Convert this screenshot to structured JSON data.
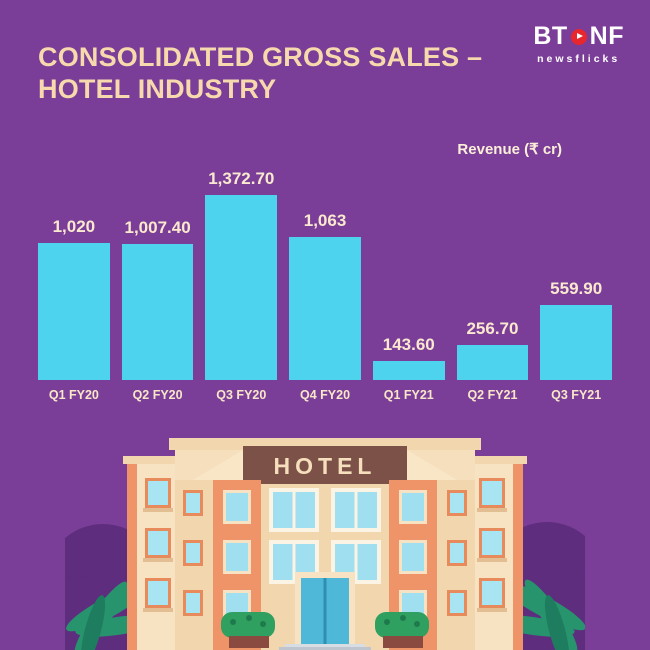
{
  "logo": {
    "bt": "BT",
    "nf": "NF",
    "tagline": "newsflicks"
  },
  "header": {
    "title_line1": "CONSOLIDATED GROSS SALES –",
    "title_line2": "HOTEL INDUSTRY"
  },
  "chart_data": {
    "type": "bar",
    "title": "Consolidated Gross Sales – Hotel Industry",
    "ylabel": "Revenue (₹ cr)",
    "xlabel": "",
    "categories": [
      "Q1 FY20",
      "Q2 FY20",
      "Q3 FY20",
      "Q4 FY20",
      "Q1 FY21",
      "Q2 FY21",
      "Q3 FY21"
    ],
    "values": [
      1020,
      1007.4,
      1372.7,
      1063,
      143.6,
      256.7,
      559.9
    ],
    "value_labels": [
      "1,020",
      "1,007.40",
      "1,372.70",
      "1,063",
      "143.60",
      "256.70",
      "559.90"
    ],
    "ylim": [
      0,
      1400
    ],
    "grid": false,
    "legend_position": "none",
    "bar_color": "#4ED3EE"
  },
  "illustration": {
    "hotel_sign": "HOTEL"
  },
  "colors": {
    "background": "#7B3E98",
    "bar": "#4ED3EE",
    "title_text": "#F6D9AC",
    "value_text": "#FAE9CF",
    "logo_dot": "#E8262D",
    "building_cream": "#F2D7AE",
    "building_orange": "#EE9468",
    "sign_brown": "#7B5148",
    "foliage_dark": "#5E2D7E",
    "leaf_green": "#27946E"
  }
}
